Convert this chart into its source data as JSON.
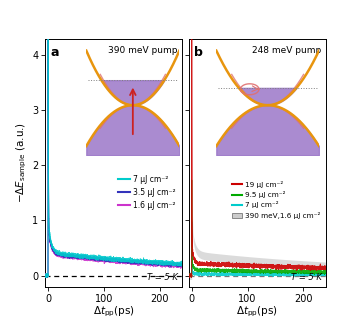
{
  "panel_a_title": "390 meV pump",
  "panel_b_title": "248 meV pump",
  "ylim": [
    -0.2,
    4.3
  ],
  "xlim": [
    -5,
    240
  ],
  "yticks": [
    0,
    1,
    2,
    3,
    4
  ],
  "xticks": [
    0,
    100,
    200
  ],
  "T_label": "T = 5 K",
  "panel_a_legend": [
    "7 μJ cm⁻²",
    "3.5 μJ cm⁻²",
    "1.6 μJ cm⁻²"
  ],
  "panel_a_colors": [
    "#00cccc",
    "#3333bb",
    "#cc33cc"
  ],
  "panel_b_legend": [
    "19 μJ cm⁻²",
    "9.5 μJ cm⁻²",
    "7 μJ cm⁻²",
    "390 meV,1.6 μJ cm⁻²"
  ],
  "panel_b_colors": [
    "#cc0000",
    "#00aa00",
    "#00cccc",
    "#aaaaaa"
  ],
  "orange": "#E8950E",
  "pink": "#E07070",
  "purple": "#9B77C8",
  "background": "#ffffff"
}
